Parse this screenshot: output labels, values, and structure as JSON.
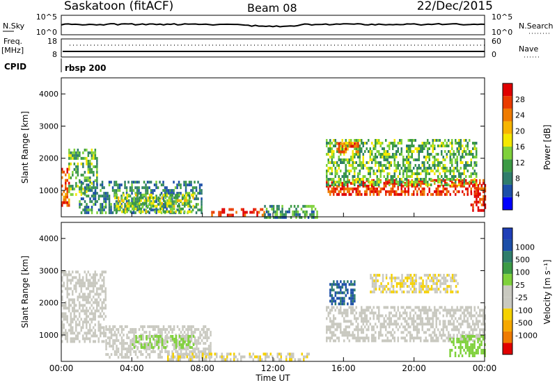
{
  "header": {
    "station": "Saskatoon (fitACF)",
    "beam": "Beam 08",
    "date": "22/Dec/2015",
    "cpid_label": "CPID",
    "cpid_value": "rbsp 200"
  },
  "noise_panel": {
    "left_label": "N.Sky",
    "right_label": "N.Search",
    "left_ticks": [
      "10^5",
      "10^0"
    ],
    "right_ticks": [
      "10^5",
      "10^0"
    ]
  },
  "freq_panel": {
    "left_label_top": "Freq.",
    "left_label_bottom": "[MHz]",
    "right_label": "Nave",
    "left_ticks": [
      "18",
      "8"
    ],
    "right_ticks": [
      "60",
      "0"
    ]
  },
  "colors": {
    "power": [
      "#0000ff",
      "#1c4fa8",
      "#2f7d6b",
      "#3c9a45",
      "#7fd13b",
      "#f4e800",
      "#f7b500",
      "#ef7b00",
      "#ea3b00",
      "#e00000"
    ],
    "velocity": [
      "#e00000",
      "#ef7b00",
      "#f6a800",
      "#f5d100",
      "#c9c9c0",
      "#c9c9c0",
      "#7fd13b",
      "#3c9a45",
      "#2f7d6b",
      "#1c4fa8",
      "#1f3fb8"
    ]
  },
  "chart_data": [
    {
      "type": "heatmap",
      "name": "power",
      "ylabel": "Slant Range [km]",
      "ylim": [
        180,
        4500
      ],
      "yticks": [
        1000,
        2000,
        3000,
        4000
      ],
      "xlim": [
        0,
        24
      ],
      "colorbar": {
        "label": "Power [dB]",
        "ticks": [
          "4",
          "8",
          "12",
          "16",
          "20",
          "24",
          "28"
        ],
        "range": [
          0,
          30
        ]
      },
      "regions": [
        {
          "t0": 0.0,
          "t1": 0.4,
          "r0": 500,
          "r1": 1700,
          "value": 24
        },
        {
          "t0": 0.4,
          "t1": 2.0,
          "r0": 900,
          "r1": 2300,
          "value": 12
        },
        {
          "t0": 1.0,
          "t1": 8.0,
          "r0": 300,
          "r1": 1300,
          "value": 8
        },
        {
          "t0": 3.0,
          "t1": 7.5,
          "r0": 350,
          "r1": 900,
          "value": 14
        },
        {
          "t0": 8.5,
          "t1": 11.5,
          "r0": 200,
          "r1": 450,
          "value": 26
        },
        {
          "t0": 11.5,
          "t1": 14.5,
          "r0": 200,
          "r1": 550,
          "value": 10
        },
        {
          "t0": 15.0,
          "t1": 24.0,
          "r0": 850,
          "r1": 1350,
          "value": 26
        },
        {
          "t0": 15.0,
          "t1": 23.5,
          "r0": 1200,
          "r1": 2600,
          "value": 12
        },
        {
          "t0": 15.5,
          "t1": 16.8,
          "r0": 2200,
          "r1": 2500,
          "value": 24
        },
        {
          "t0": 23.2,
          "t1": 24.0,
          "r0": 350,
          "r1": 1200,
          "value": 28
        }
      ]
    },
    {
      "type": "heatmap",
      "name": "velocity",
      "ylabel": "Slant Range [km]",
      "ylim": [
        180,
        4500
      ],
      "yticks": [
        1000,
        2000,
        3000,
        4000
      ],
      "xlim": [
        0,
        24
      ],
      "xlabel": "Time UT",
      "xticks": [
        "00:00",
        "04:00",
        "08:00",
        "12:00",
        "16:00",
        "20:00",
        "00:00"
      ],
      "colorbar": {
        "label": "Velocity [m s⁻¹]",
        "ticks": [
          "1000",
          "500",
          "100",
          "25",
          "-25",
          "-100",
          "-500",
          "-1000"
        ],
        "range": [
          -1200,
          1200
        ]
      },
      "regions": [
        {
          "t0": 0.0,
          "t1": 2.5,
          "r0": 800,
          "r1": 3000,
          "value": 0
        },
        {
          "t0": 2.5,
          "t1": 8.5,
          "r0": 300,
          "r1": 1300,
          "value": 0
        },
        {
          "t0": 4.0,
          "t1": 7.5,
          "r0": 600,
          "r1": 1000,
          "value": 150
        },
        {
          "t0": 6.0,
          "t1": 14.0,
          "r0": 200,
          "r1": 450,
          "value": -300
        },
        {
          "t0": 15.0,
          "t1": 24.0,
          "r0": 800,
          "r1": 1900,
          "value": 0
        },
        {
          "t0": 15.2,
          "t1": 16.6,
          "r0": 2000,
          "r1": 2700,
          "value": 800
        },
        {
          "t0": 17.5,
          "t1": 22.5,
          "r0": 2300,
          "r1": 2900,
          "value": -300
        },
        {
          "t0": 22.0,
          "t1": 24.0,
          "r0": 350,
          "r1": 1000,
          "value": 200
        }
      ]
    }
  ]
}
